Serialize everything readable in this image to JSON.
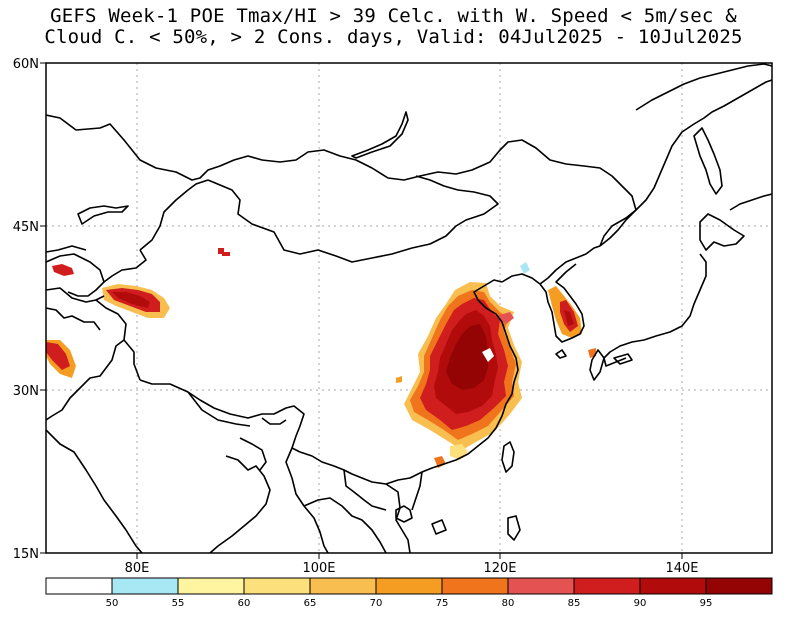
{
  "title": {
    "line1": "GEFS Week-1 POE Tmax/HI > 39 Celc. with W. Speed < 5m/sec &",
    "line2": "Cloud C. < 50%, > 2 Cons. days, Valid: 04Jul2025 - 10Jul2025"
  },
  "map": {
    "lat_labels": [
      "60N",
      "45N",
      "30N",
      "15N"
    ],
    "lon_labels": [
      "80E",
      "100E",
      "120E",
      "140E"
    ],
    "lon_range": [
      70,
      150
    ],
    "lat_range": [
      15,
      60
    ],
    "gridlines": "dotted"
  },
  "legend": {
    "tick_labels": [
      "50",
      "55",
      "60",
      "65",
      "70",
      "75",
      "80",
      "85",
      "90",
      "95"
    ],
    "colors": [
      "#ffffff",
      "#a8e8f4",
      "#fff5a0",
      "#fbe07c",
      "#f8be50",
      "#f59d22",
      "#f0741c",
      "#e45252",
      "#d01e1e",
      "#b20b0b",
      "#940404"
    ]
  }
}
